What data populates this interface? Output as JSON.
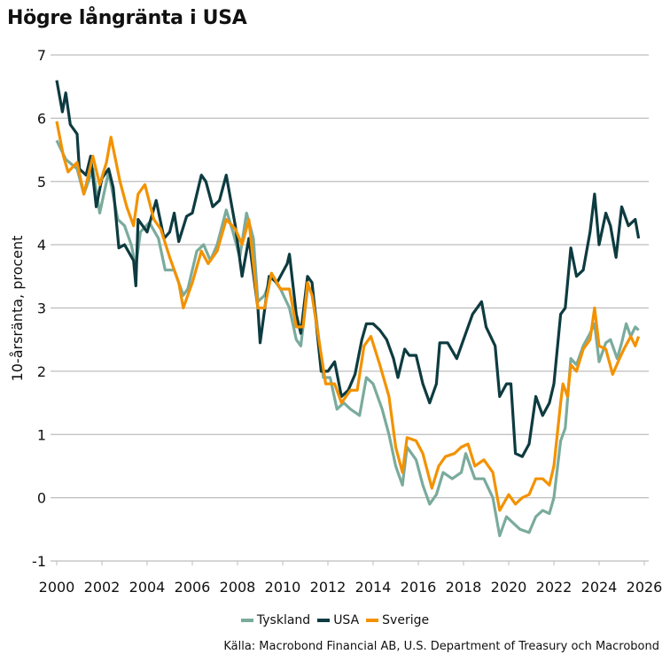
{
  "title": "Högre långränta i USA",
  "source": "Källa: Macrobond Financial AB, U.S. Department of Treasury och Macrobond",
  "chart_data": {
    "type": "line",
    "title": "Högre långränta i USA",
    "ylabel": "10-årsränta, procent",
    "xlabel": "",
    "xlim": [
      2000,
      2026
    ],
    "ylim": [
      -1,
      7
    ],
    "xticks": [
      "2000",
      "2002",
      "2004",
      "2006",
      "2008",
      "2010",
      "2012",
      "2014",
      "2016",
      "2018",
      "2020",
      "2022",
      "2024",
      "2026"
    ],
    "yticks": [
      "-1",
      "0",
      "1",
      "2",
      "3",
      "4",
      "5",
      "6",
      "7"
    ],
    "grid": "horizontal",
    "legend": "bottom",
    "series": [
      {
        "name": "Tyskland",
        "color": "#7aab9d",
        "points": [
          [
            2000,
            5.65
          ],
          [
            2000.4,
            5.35
          ],
          [
            2000.9,
            5.2
          ],
          [
            2001.2,
            4.8
          ],
          [
            2001.6,
            5.2
          ],
          [
            2001.9,
            4.5
          ],
          [
            2002.3,
            5.15
          ],
          [
            2002.7,
            4.4
          ],
          [
            2003,
            4.3
          ],
          [
            2003.3,
            4.0
          ],
          [
            2003.5,
            3.65
          ],
          [
            2003.7,
            4.2
          ],
          [
            2004.1,
            4.35
          ],
          [
            2004.5,
            4.1
          ],
          [
            2004.8,
            3.6
          ],
          [
            2005.2,
            3.6
          ],
          [
            2005.6,
            3.2
          ],
          [
            2005.8,
            3.3
          ],
          [
            2006.2,
            3.9
          ],
          [
            2006.5,
            4.0
          ],
          [
            2006.8,
            3.75
          ],
          [
            2007.1,
            4.0
          ],
          [
            2007.5,
            4.55
          ],
          [
            2007.8,
            4.2
          ],
          [
            2008.1,
            3.8
          ],
          [
            2008.4,
            4.5
          ],
          [
            2008.7,
            4.1
          ],
          [
            2008.9,
            3.1
          ],
          [
            2009.2,
            3.2
          ],
          [
            2009.5,
            3.5
          ],
          [
            2009.9,
            3.3
          ],
          [
            2010.3,
            3.0
          ],
          [
            2010.6,
            2.5
          ],
          [
            2010.8,
            2.4
          ],
          [
            2011.1,
            3.3
          ],
          [
            2011.3,
            3.3
          ],
          [
            2011.5,
            2.8
          ],
          [
            2011.8,
            1.9
          ],
          [
            2012.1,
            1.9
          ],
          [
            2012.4,
            1.4
          ],
          [
            2012.7,
            1.5
          ],
          [
            2013,
            1.4
          ],
          [
            2013.4,
            1.3
          ],
          [
            2013.7,
            1.9
          ],
          [
            2014,
            1.8
          ],
          [
            2014.4,
            1.4
          ],
          [
            2014.7,
            1.0
          ],
          [
            2015,
            0.5
          ],
          [
            2015.3,
            0.2
          ],
          [
            2015.5,
            0.8
          ],
          [
            2015.9,
            0.6
          ],
          [
            2016.2,
            0.2
          ],
          [
            2016.5,
            -0.1
          ],
          [
            2016.8,
            0.05
          ],
          [
            2017.1,
            0.4
          ],
          [
            2017.5,
            0.3
          ],
          [
            2017.9,
            0.4
          ],
          [
            2018.1,
            0.7
          ],
          [
            2018.5,
            0.3
          ],
          [
            2018.9,
            0.3
          ],
          [
            2019.3,
            0.0
          ],
          [
            2019.6,
            -0.6
          ],
          [
            2019.9,
            -0.3
          ],
          [
            2020.2,
            -0.4
          ],
          [
            2020.5,
            -0.5
          ],
          [
            2020.9,
            -0.55
          ],
          [
            2021.2,
            -0.3
          ],
          [
            2021.5,
            -0.2
          ],
          [
            2021.8,
            -0.25
          ],
          [
            2022,
            0.0
          ],
          [
            2022.3,
            0.9
          ],
          [
            2022.5,
            1.1
          ],
          [
            2022.75,
            2.2
          ],
          [
            2023,
            2.1
          ],
          [
            2023.3,
            2.4
          ],
          [
            2023.6,
            2.6
          ],
          [
            2023.8,
            2.75
          ],
          [
            2024,
            2.15
          ],
          [
            2024.3,
            2.45
          ],
          [
            2024.5,
            2.5
          ],
          [
            2024.8,
            2.2
          ],
          [
            2025,
            2.45
          ],
          [
            2025.2,
            2.75
          ],
          [
            2025.4,
            2.55
          ],
          [
            2025.6,
            2.7
          ],
          [
            2025.75,
            2.65
          ]
        ]
      },
      {
        "name": "USA",
        "color": "#0d3b40",
        "points": [
          [
            2000,
            6.6
          ],
          [
            2000.25,
            6.1
          ],
          [
            2000.4,
            6.4
          ],
          [
            2000.6,
            5.9
          ],
          [
            2000.9,
            5.75
          ],
          [
            2001,
            5.2
          ],
          [
            2001.3,
            5.1
          ],
          [
            2001.5,
            5.4
          ],
          [
            2001.75,
            4.6
          ],
          [
            2002,
            5.05
          ],
          [
            2002.3,
            5.2
          ],
          [
            2002.5,
            4.9
          ],
          [
            2002.75,
            3.95
          ],
          [
            2003,
            4.0
          ],
          [
            2003.4,
            3.75
          ],
          [
            2003.5,
            3.35
          ],
          [
            2003.6,
            4.4
          ],
          [
            2004,
            4.2
          ],
          [
            2004.4,
            4.7
          ],
          [
            2004.75,
            4.1
          ],
          [
            2005,
            4.2
          ],
          [
            2005.2,
            4.5
          ],
          [
            2005.4,
            4.05
          ],
          [
            2005.75,
            4.45
          ],
          [
            2006,
            4.5
          ],
          [
            2006.4,
            5.1
          ],
          [
            2006.6,
            5.0
          ],
          [
            2006.9,
            4.6
          ],
          [
            2007.2,
            4.7
          ],
          [
            2007.5,
            5.1
          ],
          [
            2007.9,
            4.3
          ],
          [
            2008.2,
            3.5
          ],
          [
            2008.5,
            4.1
          ],
          [
            2008.9,
            3.0
          ],
          [
            2009,
            2.45
          ],
          [
            2009.4,
            3.5
          ],
          [
            2009.75,
            3.4
          ],
          [
            2010.2,
            3.7
          ],
          [
            2010.3,
            3.85
          ],
          [
            2010.6,
            2.9
          ],
          [
            2010.8,
            2.6
          ],
          [
            2011.1,
            3.5
          ],
          [
            2011.3,
            3.4
          ],
          [
            2011.7,
            2.0
          ],
          [
            2012,
            2.0
          ],
          [
            2012.3,
            2.15
          ],
          [
            2012.6,
            1.6
          ],
          [
            2012.9,
            1.7
          ],
          [
            2013.2,
            1.95
          ],
          [
            2013.5,
            2.5
          ],
          [
            2013.7,
            2.75
          ],
          [
            2014,
            2.75
          ],
          [
            2014.3,
            2.65
          ],
          [
            2014.6,
            2.5
          ],
          [
            2014.9,
            2.2
          ],
          [
            2015.1,
            1.9
          ],
          [
            2015.4,
            2.35
          ],
          [
            2015.6,
            2.25
          ],
          [
            2015.9,
            2.25
          ],
          [
            2016.2,
            1.8
          ],
          [
            2016.5,
            1.5
          ],
          [
            2016.8,
            1.8
          ],
          [
            2016.95,
            2.45
          ],
          [
            2017.3,
            2.45
          ],
          [
            2017.7,
            2.2
          ],
          [
            2018,
            2.5
          ],
          [
            2018.4,
            2.9
          ],
          [
            2018.8,
            3.1
          ],
          [
            2019,
            2.7
          ],
          [
            2019.4,
            2.4
          ],
          [
            2019.6,
            1.6
          ],
          [
            2019.9,
            1.8
          ],
          [
            2020.1,
            1.8
          ],
          [
            2020.3,
            0.7
          ],
          [
            2020.6,
            0.65
          ],
          [
            2020.9,
            0.85
          ],
          [
            2021.2,
            1.6
          ],
          [
            2021.5,
            1.3
          ],
          [
            2021.8,
            1.5
          ],
          [
            2022,
            1.8
          ],
          [
            2022.3,
            2.9
          ],
          [
            2022.5,
            3.0
          ],
          [
            2022.75,
            3.95
          ],
          [
            2023,
            3.5
          ],
          [
            2023.3,
            3.6
          ],
          [
            2023.6,
            4.2
          ],
          [
            2023.8,
            4.8
          ],
          [
            2024,
            4.0
          ],
          [
            2024.3,
            4.5
          ],
          [
            2024.5,
            4.3
          ],
          [
            2024.75,
            3.8
          ],
          [
            2025,
            4.6
          ],
          [
            2025.3,
            4.3
          ],
          [
            2025.6,
            4.4
          ],
          [
            2025.75,
            4.1
          ]
        ]
      },
      {
        "name": "Sverige",
        "color": "#f39200",
        "points": [
          [
            2000,
            5.95
          ],
          [
            2000.3,
            5.4
          ],
          [
            2000.5,
            5.15
          ],
          [
            2000.9,
            5.3
          ],
          [
            2001.2,
            4.8
          ],
          [
            2001.6,
            5.4
          ],
          [
            2001.9,
            4.95
          ],
          [
            2002.2,
            5.3
          ],
          [
            2002.4,
            5.7
          ],
          [
            2002.8,
            5.0
          ],
          [
            2003.1,
            4.6
          ],
          [
            2003.4,
            4.3
          ],
          [
            2003.6,
            4.8
          ],
          [
            2003.9,
            4.95
          ],
          [
            2004.3,
            4.4
          ],
          [
            2004.6,
            4.25
          ],
          [
            2005,
            3.8
          ],
          [
            2005.4,
            3.4
          ],
          [
            2005.6,
            3.0
          ],
          [
            2006,
            3.4
          ],
          [
            2006.4,
            3.9
          ],
          [
            2006.7,
            3.7
          ],
          [
            2007.1,
            3.9
          ],
          [
            2007.5,
            4.4
          ],
          [
            2007.9,
            4.25
          ],
          [
            2008.2,
            4.0
          ],
          [
            2008.5,
            4.4
          ],
          [
            2008.9,
            3.0
          ],
          [
            2009.2,
            3.0
          ],
          [
            2009.5,
            3.55
          ],
          [
            2009.9,
            3.3
          ],
          [
            2010.3,
            3.3
          ],
          [
            2010.6,
            2.7
          ],
          [
            2010.9,
            2.7
          ],
          [
            2011.1,
            3.4
          ],
          [
            2011.3,
            3.2
          ],
          [
            2011.6,
            2.5
          ],
          [
            2011.9,
            1.8
          ],
          [
            2012.3,
            1.8
          ],
          [
            2012.6,
            1.5
          ],
          [
            2013,
            1.7
          ],
          [
            2013.3,
            1.7
          ],
          [
            2013.6,
            2.4
          ],
          [
            2013.9,
            2.55
          ],
          [
            2014.3,
            2.1
          ],
          [
            2014.7,
            1.6
          ],
          [
            2015,
            0.8
          ],
          [
            2015.3,
            0.4
          ],
          [
            2015.5,
            0.95
          ],
          [
            2015.9,
            0.9
          ],
          [
            2016.2,
            0.7
          ],
          [
            2016.6,
            0.15
          ],
          [
            2016.9,
            0.5
          ],
          [
            2017.2,
            0.65
          ],
          [
            2017.6,
            0.7
          ],
          [
            2017.9,
            0.8
          ],
          [
            2018.2,
            0.85
          ],
          [
            2018.5,
            0.5
          ],
          [
            2018.9,
            0.6
          ],
          [
            2019.3,
            0.4
          ],
          [
            2019.6,
            -0.2
          ],
          [
            2020,
            0.05
          ],
          [
            2020.3,
            -0.1
          ],
          [
            2020.6,
            0.0
          ],
          [
            2020.9,
            0.05
          ],
          [
            2021.2,
            0.3
          ],
          [
            2021.5,
            0.3
          ],
          [
            2021.8,
            0.2
          ],
          [
            2022,
            0.5
          ],
          [
            2022.3,
            1.5
          ],
          [
            2022.4,
            1.8
          ],
          [
            2022.6,
            1.6
          ],
          [
            2022.75,
            2.1
          ],
          [
            2023,
            2.0
          ],
          [
            2023.3,
            2.35
          ],
          [
            2023.6,
            2.5
          ],
          [
            2023.8,
            3.0
          ],
          [
            2024,
            2.4
          ],
          [
            2024.3,
            2.35
          ],
          [
            2024.6,
            1.95
          ],
          [
            2024.9,
            2.2
          ],
          [
            2025.1,
            2.35
          ],
          [
            2025.4,
            2.55
          ],
          [
            2025.6,
            2.4
          ],
          [
            2025.75,
            2.55
          ]
        ]
      }
    ]
  }
}
